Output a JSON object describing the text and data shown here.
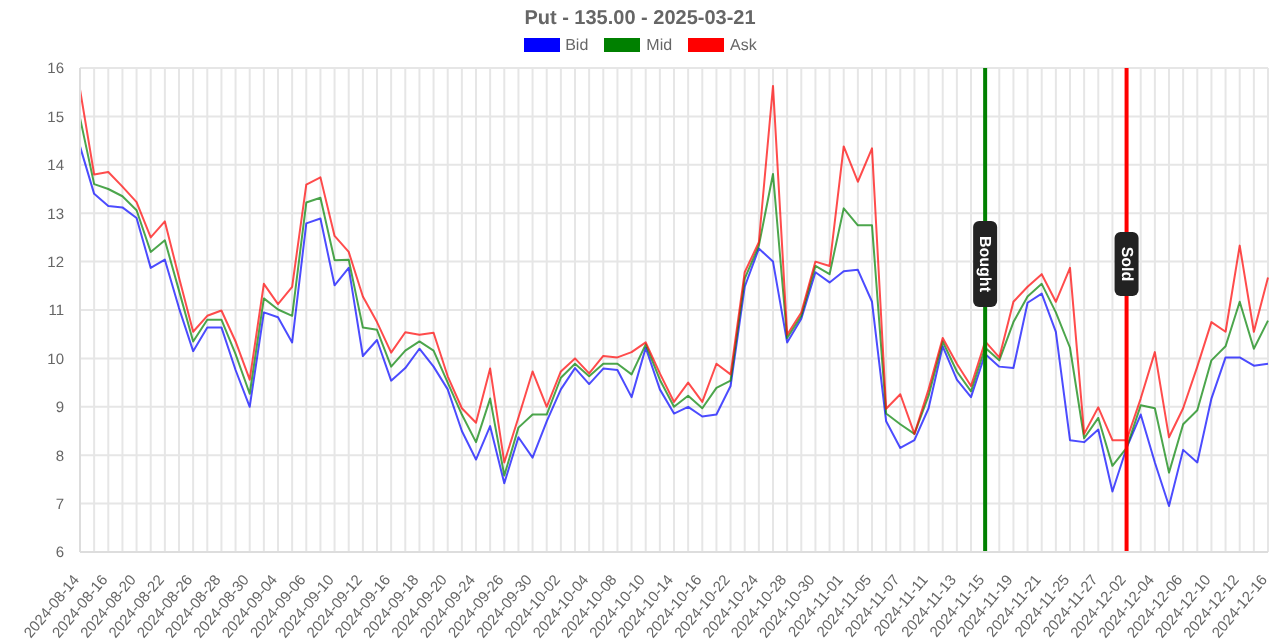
{
  "chart_data": {
    "type": "line",
    "title": "Put - 135.00 - 2025-03-21",
    "categories": [
      "2024-08-14",
      null,
      "2024-08-16",
      null,
      "2024-08-20",
      null,
      "2024-08-22",
      null,
      "2024-08-26",
      null,
      "2024-08-28",
      null,
      "2024-08-30",
      null,
      "2024-09-04",
      null,
      "2024-09-06",
      null,
      "2024-09-10",
      null,
      "2024-09-12",
      null,
      "2024-09-16",
      null,
      "2024-09-18",
      null,
      "2024-09-20",
      null,
      "2024-09-24",
      null,
      "2024-09-26",
      null,
      "2024-09-30",
      null,
      "2024-10-02",
      null,
      "2024-10-04",
      null,
      "2024-10-08",
      null,
      "2024-10-10",
      null,
      "2024-10-14",
      null,
      "2024-10-16",
      null,
      "2024-10-22",
      null,
      "2024-10-24",
      null,
      "2024-10-28",
      null,
      "2024-10-30",
      null,
      "2024-11-01",
      null,
      "2024-11-05",
      null,
      "2024-11-07",
      null,
      "2024-11-11",
      null,
      "2024-11-13",
      null,
      "2024-11-15",
      null,
      "2024-11-19",
      null,
      "2024-11-21",
      null,
      "2024-11-25",
      null,
      "2024-11-27",
      null,
      "2024-12-02",
      null,
      "2024-12-04",
      null,
      "2024-12-06",
      null,
      "2024-12-10",
      null,
      "2024-12-12",
      null,
      "2024-12-16"
    ],
    "series": [
      {
        "name": "Bid",
        "color": "#0000ff",
        "values": [
          14.38,
          13.4,
          13.15,
          13.12,
          12.9,
          11.87,
          12.04,
          11.04,
          10.15,
          10.64,
          10.64,
          9.76,
          9.0,
          10.95,
          10.85,
          10.33,
          12.79,
          12.89,
          11.51,
          11.87,
          10.05,
          10.38,
          9.54,
          9.8,
          10.2,
          9.83,
          9.36,
          8.5,
          7.91,
          8.6,
          7.42,
          8.37,
          7.95,
          8.7,
          9.36,
          9.8,
          9.47,
          9.79,
          9.76,
          9.2,
          10.22,
          9.36,
          8.86,
          9.0,
          8.8,
          8.84,
          9.43,
          11.48,
          12.27,
          12.0,
          10.33,
          10.82,
          11.78,
          11.57,
          11.8,
          11.83,
          11.17,
          8.7,
          8.15,
          8.31,
          8.97,
          10.25,
          9.56,
          9.2,
          10.09,
          9.83,
          9.8,
          11.15,
          11.34,
          10.55,
          8.31,
          8.27,
          8.53,
          7.25,
          8.15,
          8.84,
          7.85,
          6.95,
          8.11,
          7.85,
          9.17,
          10.02,
          10.02,
          9.85,
          9.89
        ]
      },
      {
        "name": "Mid",
        "color": "#008000",
        "values": [
          14.97,
          13.6,
          13.5,
          13.35,
          13.06,
          12.2,
          12.44,
          11.4,
          10.35,
          10.8,
          10.8,
          10.09,
          9.27,
          11.24,
          11.01,
          10.88,
          13.22,
          13.32,
          12.03,
          12.04,
          10.64,
          10.59,
          9.83,
          10.16,
          10.35,
          10.16,
          9.5,
          8.84,
          8.27,
          9.17,
          7.58,
          8.57,
          8.84,
          8.84,
          9.6,
          9.89,
          9.63,
          9.89,
          9.89,
          9.67,
          10.29,
          9.56,
          9.0,
          9.23,
          8.97,
          9.39,
          9.54,
          11.65,
          12.33,
          13.81,
          10.42,
          10.88,
          11.91,
          11.74,
          13.1,
          12.75,
          12.75,
          8.86,
          8.64,
          8.44,
          9.23,
          10.35,
          9.73,
          9.32,
          10.22,
          9.96,
          10.75,
          11.28,
          11.54,
          10.95,
          10.22,
          8.35,
          8.77,
          7.78,
          8.15,
          9.03,
          8.97,
          7.64,
          8.64,
          8.93,
          9.96,
          10.25,
          11.17,
          10.2,
          10.78
        ]
      },
      {
        "name": "Ask",
        "color": "#ff0000",
        "values": [
          15.56,
          13.8,
          13.85,
          13.55,
          13.23,
          12.5,
          12.83,
          11.67,
          10.55,
          10.88,
          10.99,
          10.35,
          9.56,
          11.54,
          11.12,
          11.48,
          13.59,
          13.74,
          12.53,
          12.2,
          11.28,
          10.75,
          10.12,
          10.54,
          10.49,
          10.53,
          9.63,
          8.97,
          8.67,
          9.79,
          7.85,
          8.78,
          9.73,
          9.0,
          9.73,
          10.0,
          9.69,
          10.05,
          10.02,
          10.13,
          10.33,
          9.69,
          9.1,
          9.5,
          9.1,
          9.89,
          9.67,
          11.78,
          12.4,
          15.63,
          10.49,
          10.95,
          12.0,
          11.91,
          14.38,
          13.65,
          14.34,
          8.96,
          9.26,
          8.44,
          9.36,
          10.42,
          9.89,
          9.43,
          10.35,
          10.02,
          11.17,
          11.48,
          11.74,
          11.17,
          11.87,
          8.44,
          8.99,
          8.31,
          8.31,
          9.17,
          10.13,
          8.37,
          8.97,
          9.83,
          10.75,
          10.55,
          12.33,
          10.55,
          11.67
        ]
      }
    ],
    "ylim": [
      6,
      16
    ],
    "yticks": [
      6,
      7,
      8,
      9,
      10,
      11,
      12,
      13,
      14,
      15,
      16
    ],
    "grid": true,
    "legend": "top",
    "marker": "none",
    "line_style": "solid",
    "ref_lines": [
      {
        "axis": "x",
        "value": "2024-11-15",
        "label": "Bought",
        "color": "#008000"
      },
      {
        "axis": "x",
        "value": "2024-12-02",
        "label": "Sold",
        "color": "#ff0000"
      }
    ]
  }
}
